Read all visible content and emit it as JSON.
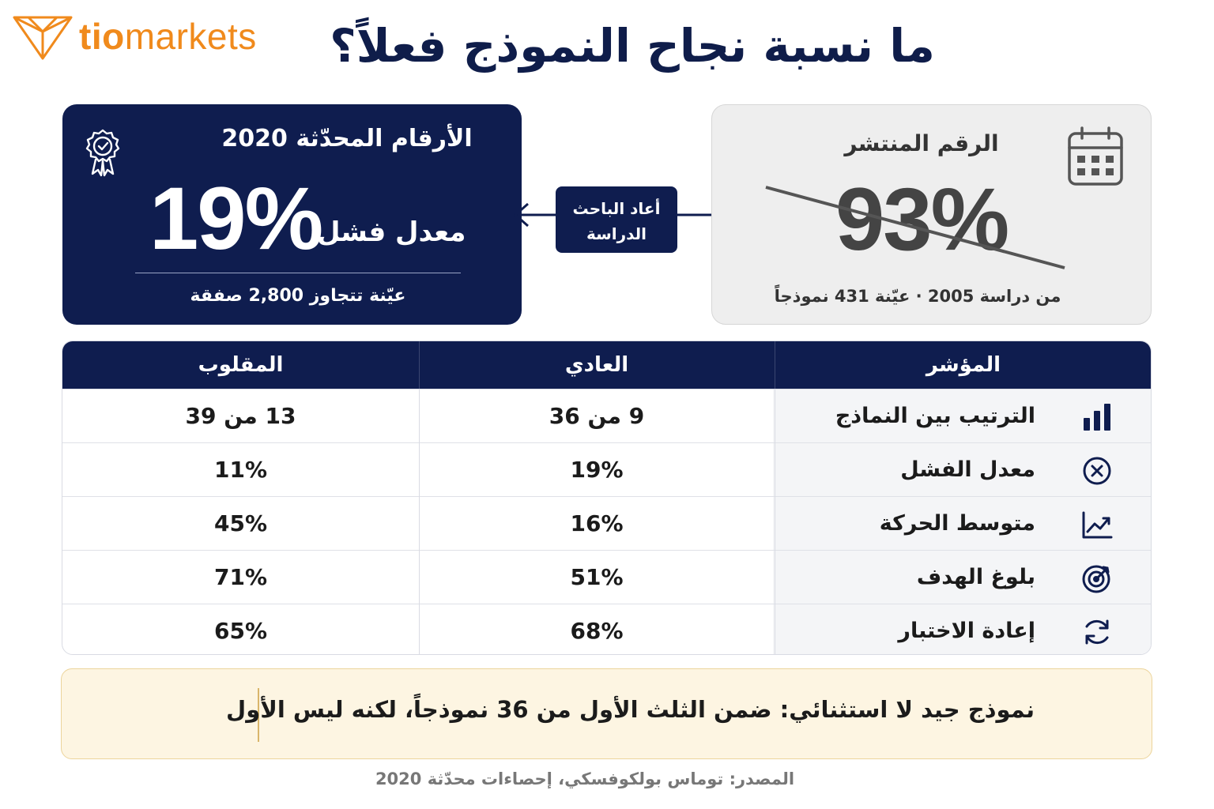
{
  "brand": {
    "logo_bold": "tio",
    "logo_light": "markets",
    "accent": "#f08a1c"
  },
  "title": "ما نسبة نجاح النموذج فعلاً؟",
  "updated_card": {
    "heading": "الأرقام المحدّثة 2020",
    "value": "19%",
    "label": "معدل فشل",
    "subtitle": "عيّنة تتجاوز 2,800 صفقة",
    "icon": "award-badge-icon"
  },
  "old_card": {
    "heading": "الرقم المنتشر",
    "value": "93%",
    "subtitle": "من دراسة 2005 · عيّنة 431 نموذجاً",
    "icon": "calendar-icon"
  },
  "connector_label": [
    "أعاد الباحث",
    "الدراسة"
  ],
  "table": {
    "headers": {
      "metric": "المؤشر",
      "normal": "العادي",
      "inverted": "المقلوب"
    },
    "rows": [
      {
        "metric": "الترتيب بين النماذج",
        "normal": "9 من 36",
        "inverted": "13 من 39",
        "icon": "bar-chart-icon"
      },
      {
        "metric": "معدل الفشل",
        "normal": "19%",
        "inverted": "11%",
        "icon": "x-circle-icon"
      },
      {
        "metric": "متوسط الحركة",
        "normal": "16%",
        "inverted": "45%",
        "icon": "trend-up-icon"
      },
      {
        "metric": "بلوغ الهدف",
        "normal": "51%",
        "inverted": "71%",
        "icon": "target-icon"
      },
      {
        "metric": "إعادة الاختبار",
        "normal": "68%",
        "inverted": "65%",
        "icon": "refresh-icon"
      }
    ]
  },
  "note": "نموذج جيد لا استثنائي: ضمن الثلث الأول من 36 نموذجاً، لكنه ليس الأول",
  "source": "المصدر: توماس بولكوفسكي، إحصاءات محدّثة 2020",
  "colors": {
    "navy": "#0f1d4f",
    "note_bg": "#fdf5e2",
    "grey_card": "#eeeeee"
  }
}
